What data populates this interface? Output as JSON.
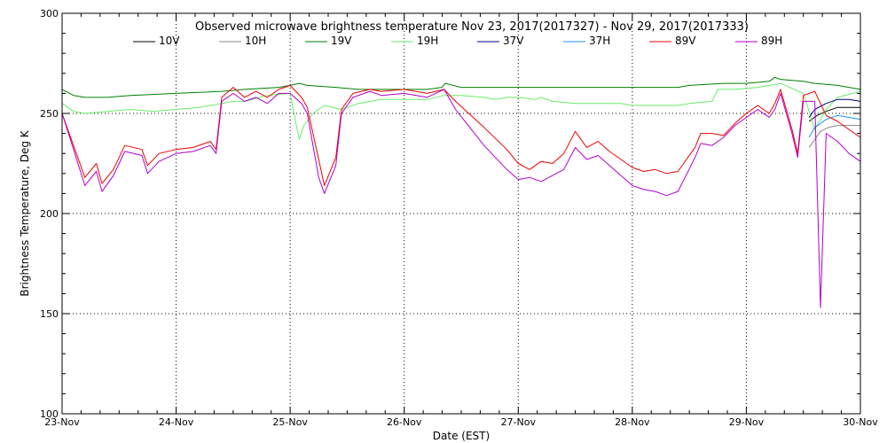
{
  "chart_data": {
    "type": "line",
    "title": "Observed microwave brightness temperature Nov 23, 2017(2017327) - Nov 29, 2017(2017333)",
    "xlabel": "Date (EST)",
    "ylabel": "Brightness Temperature, Deg K",
    "xlim": [
      0,
      7
    ],
    "ylim": [
      100,
      300
    ],
    "x_unit": "days since 23-Nov",
    "x_ticks": [
      {
        "value": 0,
        "label": "23-Nov"
      },
      {
        "value": 1,
        "label": "24-Nov"
      },
      {
        "value": 2,
        "label": "25-Nov"
      },
      {
        "value": 3,
        "label": "26-Nov"
      },
      {
        "value": 4,
        "label": "27-Nov"
      },
      {
        "value": 5,
        "label": "28-Nov"
      },
      {
        "value": 6,
        "label": "29-Nov"
      },
      {
        "value": 7,
        "label": "30-Nov"
      }
    ],
    "y_ticks": [
      100,
      150,
      200,
      250,
      300
    ],
    "grid": "dotted",
    "legend_position": "top",
    "series": [
      {
        "name": "10V",
        "color": "#000000",
        "points": [
          [
            6.55,
            246
          ],
          [
            6.62,
            249
          ],
          [
            6.7,
            251
          ],
          [
            6.8,
            253
          ],
          [
            6.9,
            253
          ],
          [
            7.0,
            253
          ]
        ]
      },
      {
        "name": "10H",
        "color": "#888888",
        "points": [
          [
            6.55,
            233
          ],
          [
            6.6,
            237
          ],
          [
            6.65,
            241
          ],
          [
            6.72,
            243
          ],
          [
            6.8,
            244
          ],
          [
            6.9,
            244
          ],
          [
            7.0,
            244
          ]
        ]
      },
      {
        "name": "19V",
        "color": "#008000",
        "points": [
          [
            0,
            262
          ],
          [
            0.1,
            259
          ],
          [
            0.2,
            258
          ],
          [
            0.4,
            258
          ],
          [
            0.6,
            259
          ],
          [
            1.0,
            260
          ],
          [
            1.4,
            261
          ],
          [
            1.6,
            262
          ],
          [
            1.9,
            263
          ],
          [
            2.0,
            264
          ],
          [
            2.08,
            265
          ],
          [
            2.15,
            264
          ],
          [
            2.4,
            263
          ],
          [
            2.6,
            262
          ],
          [
            2.8,
            262
          ],
          [
            3.0,
            262
          ],
          [
            3.2,
            262
          ],
          [
            3.33,
            263
          ],
          [
            3.36,
            265
          ],
          [
            3.5,
            263
          ],
          [
            3.8,
            263
          ],
          [
            4.0,
            263
          ],
          [
            4.5,
            263
          ],
          [
            5.0,
            263
          ],
          [
            5.4,
            263
          ],
          [
            5.5,
            264
          ],
          [
            5.8,
            265
          ],
          [
            6.0,
            265
          ],
          [
            6.2,
            266
          ],
          [
            6.25,
            268
          ],
          [
            6.3,
            267
          ],
          [
            6.5,
            266
          ],
          [
            6.6,
            265
          ],
          [
            6.8,
            264
          ],
          [
            7.0,
            262
          ]
        ]
      },
      {
        "name": "19H",
        "color": "#66ee66",
        "points": [
          [
            0,
            255
          ],
          [
            0.1,
            251
          ],
          [
            0.2,
            250
          ],
          [
            0.4,
            251
          ],
          [
            0.6,
            252
          ],
          [
            0.8,
            251
          ],
          [
            1.0,
            252
          ],
          [
            1.2,
            253
          ],
          [
            1.4,
            255
          ],
          [
            1.5,
            256
          ],
          [
            1.6,
            256
          ],
          [
            1.8,
            259
          ],
          [
            2.0,
            260
          ],
          [
            2.05,
            245
          ],
          [
            2.08,
            237
          ],
          [
            2.12,
            244
          ],
          [
            2.2,
            250
          ],
          [
            2.3,
            254
          ],
          [
            2.45,
            252
          ],
          [
            2.6,
            255
          ],
          [
            2.8,
            257
          ],
          [
            3.0,
            257
          ],
          [
            3.2,
            257
          ],
          [
            3.35,
            259
          ],
          [
            3.5,
            259
          ],
          [
            3.7,
            258
          ],
          [
            3.8,
            257
          ],
          [
            3.9,
            258
          ],
          [
            4.0,
            258
          ],
          [
            4.15,
            257
          ],
          [
            4.2,
            258
          ],
          [
            4.3,
            256
          ],
          [
            4.5,
            255
          ],
          [
            4.7,
            255
          ],
          [
            4.9,
            255
          ],
          [
            5.0,
            254
          ],
          [
            5.2,
            254
          ],
          [
            5.4,
            254
          ],
          [
            5.5,
            255
          ],
          [
            5.7,
            256
          ],
          [
            5.75,
            262
          ],
          [
            5.9,
            262
          ],
          [
            6.1,
            263
          ],
          [
            6.3,
            265
          ],
          [
            6.5,
            260
          ],
          [
            6.6,
            242
          ],
          [
            6.7,
            252
          ],
          [
            6.8,
            258
          ],
          [
            7.0,
            261
          ]
        ]
      },
      {
        "name": "37V",
        "color": "#00008b",
        "points": [
          [
            6.55,
            248
          ],
          [
            6.6,
            252
          ],
          [
            6.7,
            255
          ],
          [
            6.8,
            257
          ],
          [
            6.9,
            257
          ],
          [
            7.0,
            256
          ]
        ]
      },
      {
        "name": "37H",
        "color": "#1e90ff",
        "points": [
          [
            6.55,
            238
          ],
          [
            6.6,
            243
          ],
          [
            6.7,
            247
          ],
          [
            6.8,
            249
          ],
          [
            6.9,
            248
          ],
          [
            7.0,
            247
          ]
        ]
      },
      {
        "name": "89V",
        "color": "#ee0000",
        "points": [
          [
            0,
            250
          ],
          [
            0.1,
            234
          ],
          [
            0.2,
            218
          ],
          [
            0.3,
            225
          ],
          [
            0.35,
            215
          ],
          [
            0.45,
            222
          ],
          [
            0.55,
            234
          ],
          [
            0.7,
            232
          ],
          [
            0.75,
            224
          ],
          [
            0.85,
            230
          ],
          [
            1.0,
            232
          ],
          [
            1.15,
            233
          ],
          [
            1.3,
            236
          ],
          [
            1.35,
            232
          ],
          [
            1.4,
            258
          ],
          [
            1.5,
            263
          ],
          [
            1.6,
            258
          ],
          [
            1.7,
            261
          ],
          [
            1.8,
            258
          ],
          [
            1.9,
            262
          ],
          [
            2.0,
            264
          ],
          [
            2.1,
            258
          ],
          [
            2.15,
            253
          ],
          [
            2.25,
            227
          ],
          [
            2.3,
            214
          ],
          [
            2.4,
            228
          ],
          [
            2.45,
            252
          ],
          [
            2.55,
            260
          ],
          [
            2.7,
            262
          ],
          [
            2.8,
            261
          ],
          [
            3.0,
            262
          ],
          [
            3.2,
            260
          ],
          [
            3.35,
            262
          ],
          [
            3.45,
            256
          ],
          [
            3.7,
            243
          ],
          [
            3.9,
            232
          ],
          [
            4.0,
            225
          ],
          [
            4.1,
            222
          ],
          [
            4.2,
            226
          ],
          [
            4.3,
            225
          ],
          [
            4.4,
            230
          ],
          [
            4.5,
            241
          ],
          [
            4.6,
            233
          ],
          [
            4.7,
            236
          ],
          [
            4.8,
            231
          ],
          [
            5.0,
            223
          ],
          [
            5.1,
            221
          ],
          [
            5.2,
            222
          ],
          [
            5.3,
            220
          ],
          [
            5.4,
            221
          ],
          [
            5.55,
            233
          ],
          [
            5.6,
            240
          ],
          [
            5.7,
            240
          ],
          [
            5.8,
            239
          ],
          [
            5.9,
            245
          ],
          [
            6.0,
            250
          ],
          [
            6.1,
            254
          ],
          [
            6.2,
            250
          ],
          [
            6.25,
            255
          ],
          [
            6.3,
            262
          ],
          [
            6.4,
            242
          ],
          [
            6.45,
            230
          ],
          [
            6.5,
            259
          ],
          [
            6.6,
            261
          ],
          [
            6.7,
            249
          ],
          [
            6.8,
            246
          ],
          [
            6.9,
            242
          ],
          [
            7.0,
            238
          ]
        ]
      },
      {
        "name": "89H",
        "color": "#b000d0",
        "points": [
          [
            0,
            250
          ],
          [
            0.1,
            232
          ],
          [
            0.2,
            214
          ],
          [
            0.3,
            221
          ],
          [
            0.35,
            211
          ],
          [
            0.45,
            219
          ],
          [
            0.55,
            231
          ],
          [
            0.7,
            229
          ],
          [
            0.75,
            220
          ],
          [
            0.85,
            226
          ],
          [
            1.0,
            230
          ],
          [
            1.15,
            231
          ],
          [
            1.3,
            234
          ],
          [
            1.35,
            230
          ],
          [
            1.4,
            256
          ],
          [
            1.5,
            260
          ],
          [
            1.6,
            256
          ],
          [
            1.7,
            258
          ],
          [
            1.8,
            255
          ],
          [
            1.9,
            260
          ],
          [
            2.0,
            260
          ],
          [
            2.1,
            255
          ],
          [
            2.15,
            250
          ],
          [
            2.25,
            218
          ],
          [
            2.3,
            210
          ],
          [
            2.4,
            224
          ],
          [
            2.45,
            250
          ],
          [
            2.55,
            258
          ],
          [
            2.7,
            261
          ],
          [
            2.8,
            259
          ],
          [
            3.0,
            260
          ],
          [
            3.2,
            258
          ],
          [
            3.35,
            262
          ],
          [
            3.45,
            252
          ],
          [
            3.7,
            234
          ],
          [
            3.9,
            222
          ],
          [
            4.0,
            217
          ],
          [
            4.1,
            218
          ],
          [
            4.2,
            216
          ],
          [
            4.3,
            219
          ],
          [
            4.4,
            222
          ],
          [
            4.5,
            233
          ],
          [
            4.6,
            227
          ],
          [
            4.7,
            229
          ],
          [
            4.8,
            224
          ],
          [
            5.0,
            214
          ],
          [
            5.1,
            212
          ],
          [
            5.2,
            211
          ],
          [
            5.3,
            209
          ],
          [
            5.4,
            211
          ],
          [
            5.55,
            228
          ],
          [
            5.6,
            235
          ],
          [
            5.7,
            234
          ],
          [
            5.8,
            238
          ],
          [
            5.9,
            244
          ],
          [
            6.0,
            248
          ],
          [
            6.1,
            252
          ],
          [
            6.2,
            248
          ],
          [
            6.25,
            252
          ],
          [
            6.3,
            260
          ],
          [
            6.4,
            240
          ],
          [
            6.45,
            228
          ],
          [
            6.5,
            256
          ],
          [
            6.6,
            256
          ],
          [
            6.65,
            153
          ],
          [
            6.7,
            240
          ],
          [
            6.8,
            236
          ],
          [
            6.9,
            230
          ],
          [
            7.0,
            226
          ]
        ]
      }
    ]
  }
}
